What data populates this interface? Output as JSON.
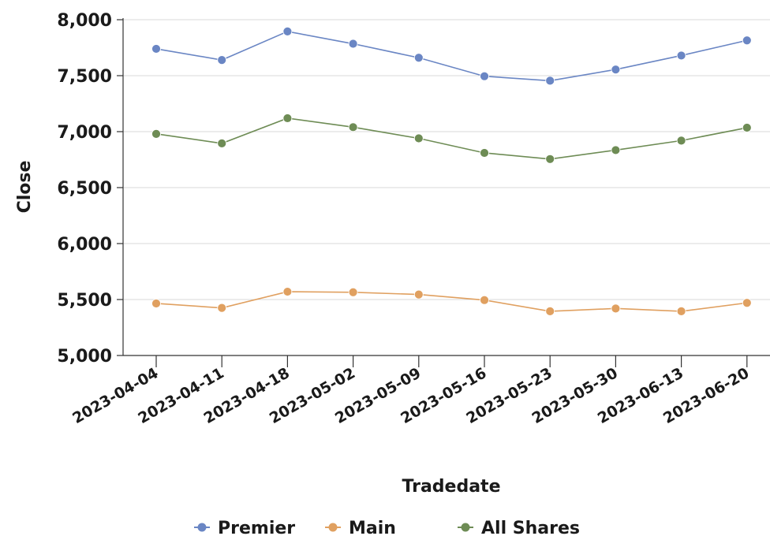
{
  "chart_data": {
    "type": "line",
    "title": "",
    "xlabel": "Tradedate",
    "ylabel": "Close",
    "ylim": [
      5000,
      8000
    ],
    "yticks": [
      5000,
      5500,
      6000,
      6500,
      7000,
      7500,
      8000
    ],
    "ytick_labels": [
      "5,000",
      "5,500",
      "6,000",
      "6,500",
      "7,000",
      "7,500",
      "8,000"
    ],
    "categories": [
      "2023-04-04",
      "2023-04-11",
      "2023-04-18",
      "2023-05-02",
      "2023-05-09",
      "2023-05-16",
      "2023-05-23",
      "2023-05-30",
      "2023-06-13",
      "2023-06-20"
    ],
    "grid": true,
    "legend_position": "bottom",
    "series": [
      {
        "name": "Premier",
        "color": "#6a86c4",
        "values": [
          7740,
          7640,
          7895,
          7785,
          7660,
          7495,
          7455,
          7555,
          7680,
          7815
        ]
      },
      {
        "name": "Main",
        "color": "#e0a060",
        "values": [
          5465,
          5425,
          5570,
          5565,
          5545,
          5495,
          5395,
          5420,
          5395,
          5470
        ]
      },
      {
        "name": "All Shares",
        "color": "#6e8c55",
        "values": [
          6980,
          6895,
          7120,
          7040,
          6940,
          6810,
          6755,
          6835,
          6920,
          7035
        ]
      }
    ]
  }
}
